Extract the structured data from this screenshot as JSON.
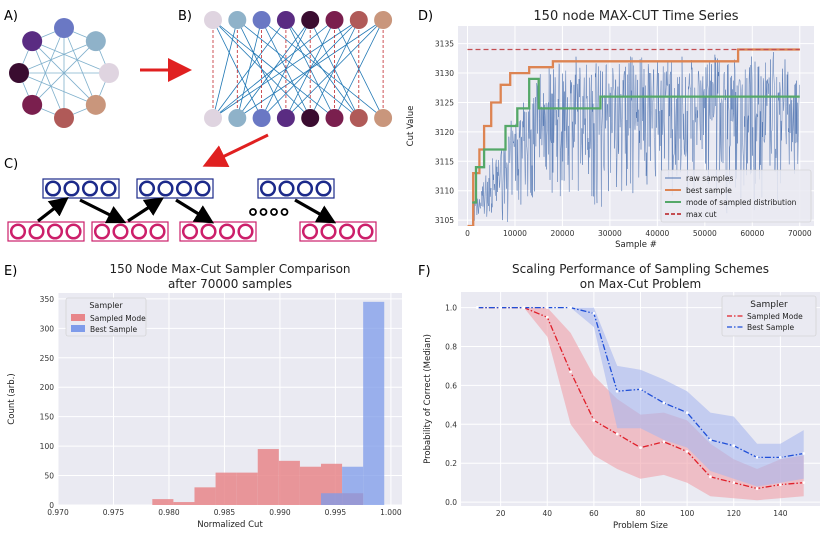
{
  "panel_labels": {
    "a": "A)",
    "b": "B)",
    "c": "C)",
    "d": "D)",
    "e": "E)",
    "f": "F)"
  },
  "graph_colors": [
    "#6a78c4",
    "#8fb2c9",
    "#dfd4e0",
    "#c9967c",
    "#b05a58",
    "#7a1f4e",
    "#3a0c30",
    "#5a2c82"
  ],
  "chart_data": [
    {
      "id": "D",
      "type": "line",
      "title": "150 node MAX-CUT Time Series",
      "xlabel": "Sample #",
      "ylabel": "Cut Value",
      "xlim": [
        -2000,
        73000
      ],
      "ylim": [
        3104,
        3138
      ],
      "xticks": [
        0,
        10000,
        20000,
        30000,
        40000,
        50000,
        60000,
        70000
      ],
      "xtick_labels": [
        "0",
        "10000",
        "20000",
        "30000",
        "40000",
        "50000",
        "60000",
        "70000"
      ],
      "yticks": [
        3105,
        3110,
        3115,
        3120,
        3125,
        3130,
        3135
      ],
      "ytick_labels": [
        "3105",
        "3110",
        "3115",
        "3120",
        "3125",
        "3130",
        "3135"
      ],
      "legend": [
        "raw samples",
        "best sample",
        "mode of sampled distribution",
        "max cut"
      ],
      "series": [
        {
          "name": "raw samples",
          "color": "#4c72b0",
          "note": "dense noisy samples between ~3104 and ~3133"
        },
        {
          "name": "best sample",
          "color": "#dd8452",
          "x": [
            0,
            1200,
            1200,
            2500,
            2500,
            3500,
            3500,
            5000,
            5000,
            7000,
            7000,
            9000,
            9000,
            13000,
            13000,
            18000,
            18000,
            57000,
            57000,
            70000
          ],
          "y": [
            3104,
            3104,
            3113,
            3113,
            3117,
            3117,
            3121,
            3121,
            3125,
            3125,
            3128,
            3128,
            3130,
            3130,
            3131,
            3131,
            3132,
            3132,
            3134,
            3134
          ]
        },
        {
          "name": "mode of sampled distribution",
          "color": "#55a868",
          "x": [
            1000,
            1800,
            1800,
            3500,
            3500,
            5500,
            5500,
            8000,
            8000,
            10500,
            10500,
            13000,
            13000,
            15000,
            15000,
            28000,
            28000,
            57000,
            57000,
            70000
          ],
          "y": [
            3108,
            3108,
            3114,
            3114,
            3117,
            3117,
            3117,
            3117,
            3121,
            3121,
            3124,
            3124,
            3129,
            3129,
            3124,
            3124,
            3126,
            3126,
            3126,
            3126
          ]
        },
        {
          "name": "max cut",
          "color": "#c44e52",
          "dashed": true,
          "x": [
            0,
            70000
          ],
          "y": [
            3134,
            3134
          ]
        }
      ]
    },
    {
      "id": "E",
      "type": "bar",
      "title": "150 Node Max-Cut Sampler Comparison",
      "subtitle": "after 70000 samples",
      "xlabel": "Normalized Cut",
      "ylabel": "Count (arb.)",
      "xlim": [
        0.97,
        1.001
      ],
      "ylim": [
        0,
        360
      ],
      "xticks": [
        0.97,
        0.975,
        0.98,
        0.985,
        0.99,
        0.995,
        1.0
      ],
      "xtick_labels": [
        "0.970",
        "0.975",
        "0.980",
        "0.985",
        "0.990",
        "0.995",
        "1.000"
      ],
      "yticks": [
        0,
        50,
        100,
        150,
        200,
        250,
        300,
        350
      ],
      "ytick_labels": [
        "0",
        "50",
        "100",
        "150",
        "200",
        "250",
        "300",
        "350"
      ],
      "legend_title": "Sampler",
      "bin_edges": [
        0.9785,
        0.9804,
        0.9823,
        0.9842,
        0.9861,
        0.988,
        0.9899,
        0.9918,
        0.9937,
        0.9956,
        0.9975,
        0.9994
      ],
      "series": [
        {
          "name": "Sampled Mode",
          "color": "#e8868a",
          "values": [
            10,
            5,
            30,
            55,
            55,
            95,
            75,
            65,
            70,
            20,
            0
          ]
        },
        {
          "name": "Best Sample",
          "color": "#7e9bea",
          "values": [
            0,
            0,
            0,
            0,
            0,
            0,
            0,
            0,
            20,
            65,
            345
          ]
        }
      ]
    },
    {
      "id": "F",
      "type": "line",
      "title": "Scaling Performance of Sampling Schemes",
      "subtitle": "on Max-Cut Problem",
      "xlabel": "Problem Size",
      "ylabel": "Probability of Correct (Median)",
      "xlim": [
        3,
        157
      ],
      "ylim": [
        -0.02,
        1.08
      ],
      "xticks": [
        20,
        40,
        60,
        80,
        100,
        120,
        140
      ],
      "xtick_labels": [
        "20",
        "40",
        "60",
        "80",
        "100",
        "120",
        "140"
      ],
      "yticks": [
        0.0,
        0.2,
        0.4,
        0.6,
        0.8,
        1.0
      ],
      "ytick_labels": [
        "0.0",
        "0.2",
        "0.4",
        "0.6",
        "0.8",
        "1.0"
      ],
      "legend_title": "Sampler",
      "x": [
        10,
        20,
        30,
        40,
        50,
        60,
        70,
        80,
        90,
        100,
        110,
        120,
        130,
        140,
        150
      ],
      "series": [
        {
          "name": "Sampled Mode",
          "color": "#e0202a",
          "band": "#f0a0a8",
          "values": [
            1.0,
            1.0,
            1.0,
            0.95,
            0.67,
            0.42,
            0.35,
            0.28,
            0.31,
            0.26,
            0.13,
            0.1,
            0.07,
            0.09,
            0.1
          ],
          "lower": [
            1.0,
            1.0,
            1.0,
            0.85,
            0.4,
            0.24,
            0.17,
            0.12,
            0.14,
            0.1,
            0.03,
            0.02,
            0.01,
            0.02,
            0.03
          ],
          "upper": [
            1.0,
            1.0,
            1.0,
            1.0,
            0.87,
            0.65,
            0.53,
            0.45,
            0.46,
            0.42,
            0.3,
            0.22,
            0.17,
            0.22,
            0.24
          ]
        },
        {
          "name": "Best Sample",
          "color": "#1f4fd8",
          "band": "#a9b8ef",
          "values": [
            1.0,
            1.0,
            1.0,
            1.0,
            1.0,
            0.97,
            0.57,
            0.58,
            0.51,
            0.46,
            0.32,
            0.29,
            0.23,
            0.23,
            0.25
          ],
          "lower": [
            1.0,
            1.0,
            1.0,
            1.0,
            1.0,
            0.9,
            0.38,
            0.38,
            0.32,
            0.28,
            0.16,
            0.12,
            0.08,
            0.1,
            0.12
          ],
          "upper": [
            1.0,
            1.0,
            1.0,
            1.0,
            1.0,
            1.0,
            0.7,
            0.68,
            0.63,
            0.57,
            0.46,
            0.44,
            0.3,
            0.3,
            0.37
          ]
        }
      ]
    }
  ]
}
